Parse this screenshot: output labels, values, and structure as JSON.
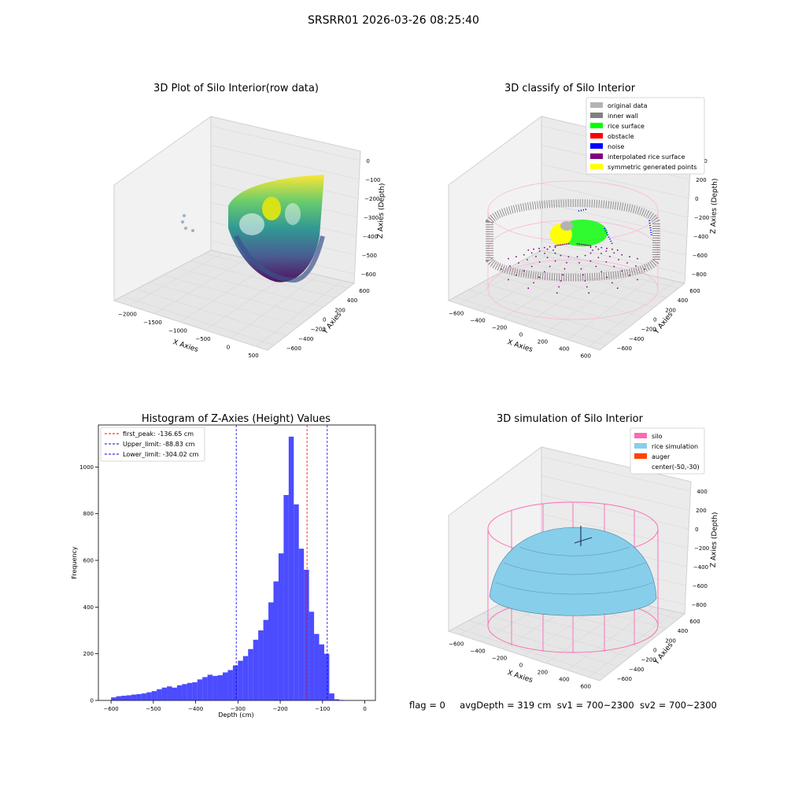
{
  "figure": {
    "suptitle": "SRSRR01 2026-03-26 08:25:40",
    "footer": {
      "flag": "flag = 0",
      "avg_depth": "avgDepth = 319 cm",
      "sv1": "sv1 = 700~2300",
      "sv2": "sv2 = 700~2300"
    }
  },
  "colors": {
    "original_data": "#b3b3b3",
    "inner_wall": "#808080",
    "rice_surface": "#00ff00",
    "obstacle": "#ff0000",
    "noise": "#0000ff",
    "interpolated_rice_surface": "#800080",
    "symmetric_generated_points": "#ffff00",
    "silo": "#ff69b4",
    "rice_simulation": "#87ceeb",
    "auger": "#ff4500",
    "histogram_bars": "#0000ff",
    "first_peak_line": "#ff0000",
    "limit_lines": "#0000ff"
  },
  "chart_data": [
    {
      "id": "raw",
      "type": "scatter",
      "title": "3D Plot of Silo Interior(row data)",
      "xlabel": "X Axies",
      "ylabel": "Y Axies",
      "zlabel": "Z Axies (Depth)",
      "x_ticks": [
        "−2000",
        "−1500",
        "−1000",
        "−500",
        "0",
        "500"
      ],
      "y_ticks": [
        "−600",
        "−400",
        "−200",
        "0",
        "200",
        "400",
        "600"
      ],
      "z_ticks": [
        "−600",
        "−500",
        "−400",
        "−300",
        "−200",
        "−100",
        "0"
      ],
      "colormap": "viridis"
    },
    {
      "id": "classify",
      "type": "scatter",
      "title": "3D classify of Silo Interior",
      "xlabel": "X Axies",
      "ylabel": "Y Axies",
      "zlabel": "Z Axies (Depth)",
      "x_ticks": [
        "−600",
        "−400",
        "−200",
        "0",
        "200",
        "400",
        "600"
      ],
      "y_ticks": [
        "−600",
        "−400",
        "−200",
        "0",
        "200",
        "400",
        "600"
      ],
      "z_ticks": [
        "−800",
        "−600",
        "−400",
        "−200",
        "0",
        "200",
        "400"
      ],
      "legend_position": "top-right",
      "legend": [
        {
          "label": "original data",
          "color": "#b3b3b3"
        },
        {
          "label": "inner wall",
          "color": "#808080"
        },
        {
          "label": "rice surface",
          "color": "#00ff00"
        },
        {
          "label": "obstacle",
          "color": "#ff0000"
        },
        {
          "label": "noise",
          "color": "#0000ff"
        },
        {
          "label": "interpolated rice surface",
          "color": "#800080"
        },
        {
          "label": "symmetric generated points",
          "color": "#ffff00"
        }
      ]
    },
    {
      "id": "histogram",
      "type": "bar",
      "title": "Histogram of Z-Axies (Height) Values",
      "xlabel": "Depth (cm)",
      "ylabel": "Frequency",
      "xlim": [
        -630,
        25
      ],
      "ylim": [
        0,
        1180
      ],
      "x_ticks": [
        -600,
        -500,
        -400,
        -300,
        -200,
        -100,
        0
      ],
      "y_ticks": [
        0,
        200,
        400,
        600,
        800,
        1000
      ],
      "bin_start": -600,
      "bin_width": 12,
      "values": [
        13,
        18,
        20,
        22,
        25,
        27,
        30,
        35,
        40,
        48,
        55,
        60,
        55,
        65,
        70,
        75,
        78,
        90,
        100,
        110,
        105,
        108,
        120,
        130,
        150,
        170,
        190,
        220,
        260,
        300,
        345,
        420,
        510,
        630,
        880,
        1130,
        840,
        650,
        560,
        380,
        285,
        240,
        200,
        30,
        5,
        2
      ],
      "reference_lines": [
        {
          "label": "first_peak: -136.65 cm",
          "value": -136.65,
          "color": "#ff0000"
        },
        {
          "label": "Upper_limit: -88.83 cm",
          "value": -88.83,
          "color": "#0000ff"
        },
        {
          "label": "Lower_limit: -304.02 cm",
          "value": -304.02,
          "color": "#0000ff"
        }
      ],
      "legend_position": "top-left"
    },
    {
      "id": "simulation",
      "type": "area",
      "title": "3D simulation of Silo Interior",
      "xlabel": "X Axies",
      "ylabel": "Y Axies",
      "zlabel": "Z Axies (Depth)",
      "x_ticks": [
        "−600",
        "−400",
        "−200",
        "0",
        "200",
        "400",
        "600"
      ],
      "y_ticks": [
        "−600",
        "−400",
        "−200",
        "0",
        "200",
        "400",
        "600"
      ],
      "z_ticks": [
        "−800",
        "−600",
        "−400",
        "−200",
        "0",
        "200",
        "400"
      ],
      "legend_position": "top-right",
      "legend": [
        {
          "label": "silo",
          "color": "#ff69b4"
        },
        {
          "label": "rice simulation",
          "color": "#87ceeb"
        },
        {
          "label": "auger",
          "color": "#ff4500"
        },
        {
          "label": "center(-50,-30)",
          "color": "#ffffff"
        }
      ]
    }
  ]
}
